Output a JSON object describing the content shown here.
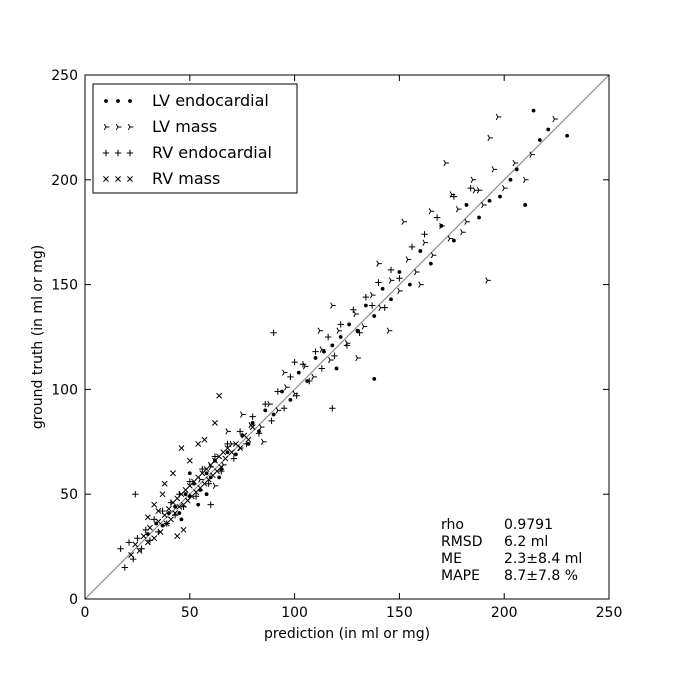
{
  "chart_data": {
    "type": "scatter",
    "xlabel": "prediction (in ml or mg)",
    "ylabel": "ground truth (in ml or mg)",
    "xlim": [
      0,
      250
    ],
    "ylim": [
      0,
      250
    ],
    "xticks": [
      "0",
      "50",
      "100",
      "150",
      "200",
      "250"
    ],
    "yticks": [
      "0",
      "50",
      "100",
      "150",
      "200",
      "250"
    ],
    "grid": false,
    "legend_position": "top-left",
    "identity_line": {
      "from": [
        0,
        0
      ],
      "to": [
        250,
        250
      ],
      "color": "#808080"
    },
    "series": [
      {
        "name": "LV endocardial",
        "marker": "dot",
        "color": "#000000",
        "values": [
          [
            30,
            31
          ],
          [
            34,
            36
          ],
          [
            37,
            35
          ],
          [
            40,
            41
          ],
          [
            43,
            44
          ],
          [
            45,
            41
          ],
          [
            48,
            50
          ],
          [
            50,
            49
          ],
          [
            52,
            55
          ],
          [
            55,
            52
          ],
          [
            58,
            60
          ],
          [
            60,
            58
          ],
          [
            62,
            66
          ],
          [
            65,
            62
          ],
          [
            68,
            70
          ],
          [
            72,
            69
          ],
          [
            75,
            78
          ],
          [
            78,
            74
          ],
          [
            80,
            84
          ],
          [
            83,
            80
          ],
          [
            86,
            90
          ],
          [
            90,
            88
          ],
          [
            94,
            99
          ],
          [
            98,
            95
          ],
          [
            102,
            108
          ],
          [
            106,
            104
          ],
          [
            110,
            115
          ],
          [
            114,
            118
          ],
          [
            118,
            121
          ],
          [
            122,
            125
          ],
          [
            126,
            131
          ],
          [
            130,
            128
          ],
          [
            134,
            140
          ],
          [
            138,
            135
          ],
          [
            142,
            148
          ],
          [
            146,
            143
          ],
          [
            150,
            156
          ],
          [
            155,
            150
          ],
          [
            160,
            166
          ],
          [
            165,
            160
          ],
          [
            170,
            178
          ],
          [
            176,
            171
          ],
          [
            182,
            188
          ],
          [
            188,
            182
          ],
          [
            193,
            190
          ],
          [
            198,
            192
          ],
          [
            203,
            200
          ],
          [
            206,
            205
          ],
          [
            210,
            188
          ],
          [
            217,
            219
          ],
          [
            221,
            224
          ],
          [
            230,
            221
          ],
          [
            214,
            233
          ],
          [
            138,
            105
          ],
          [
            120,
            110
          ],
          [
            46,
            38
          ],
          [
            50,
            60
          ],
          [
            58,
            50
          ],
          [
            64,
            58
          ],
          [
            54,
            45
          ]
        ]
      },
      {
        "name": "LV mass",
        "marker": "tri_right",
        "color": "#000000",
        "values": [
          [
            55,
            57
          ],
          [
            60,
            63
          ],
          [
            66,
            64
          ],
          [
            70,
            74
          ],
          [
            74,
            72
          ],
          [
            79,
            83
          ],
          [
            84,
            82
          ],
          [
            88,
            93
          ],
          [
            92,
            90
          ],
          [
            96,
            101
          ],
          [
            100,
            98
          ],
          [
            105,
            111
          ],
          [
            109,
            106
          ],
          [
            113,
            119
          ],
          [
            117,
            114
          ],
          [
            121,
            128
          ],
          [
            125,
            122
          ],
          [
            129,
            136
          ],
          [
            133,
            130
          ],
          [
            137,
            145
          ],
          [
            141,
            139
          ],
          [
            146,
            152
          ],
          [
            150,
            147
          ],
          [
            154,
            162
          ],
          [
            158,
            156
          ],
          [
            162,
            170
          ],
          [
            166,
            164
          ],
          [
            170,
            178
          ],
          [
            174,
            172
          ],
          [
            178,
            186
          ],
          [
            182,
            180
          ],
          [
            186,
            195
          ],
          [
            190,
            188
          ],
          [
            195,
            205
          ],
          [
            200,
            196
          ],
          [
            205,
            208
          ],
          [
            210,
            200
          ],
          [
            213,
            212
          ],
          [
            172,
            208
          ],
          [
            197,
            230
          ],
          [
            224,
            229
          ],
          [
            188,
            195
          ],
          [
            192,
            152
          ],
          [
            180,
            175
          ],
          [
            160,
            150
          ],
          [
            145,
            128
          ],
          [
            130,
            115
          ],
          [
            112,
            128
          ],
          [
            95,
            108
          ],
          [
            85,
            75
          ],
          [
            75,
            88
          ],
          [
            68,
            80
          ],
          [
            62,
            54
          ],
          [
            140,
            160
          ],
          [
            152,
            180
          ],
          [
            175,
            193
          ],
          [
            185,
            200
          ],
          [
            193,
            220
          ],
          [
            165,
            185
          ],
          [
            118,
            140
          ]
        ]
      },
      {
        "name": "RV endocardial",
        "marker": "plus",
        "color": "#000000",
        "values": [
          [
            17,
            24
          ],
          [
            19,
            15
          ],
          [
            21,
            27
          ],
          [
            23,
            19
          ],
          [
            24,
            50
          ],
          [
            25,
            29
          ],
          [
            27,
            24
          ],
          [
            29,
            33
          ],
          [
            31,
            28
          ],
          [
            33,
            38
          ],
          [
            35,
            32
          ],
          [
            37,
            42
          ],
          [
            39,
            36
          ],
          [
            41,
            46
          ],
          [
            43,
            40
          ],
          [
            45,
            50
          ],
          [
            47,
            44
          ],
          [
            50,
            56
          ],
          [
            53,
            49
          ],
          [
            56,
            62
          ],
          [
            59,
            55
          ],
          [
            62,
            68
          ],
          [
            65,
            61
          ],
          [
            68,
            74
          ],
          [
            71,
            67
          ],
          [
            74,
            80
          ],
          [
            77,
            74
          ],
          [
            80,
            87
          ],
          [
            83,
            79
          ],
          [
            86,
            93
          ],
          [
            89,
            85
          ],
          [
            92,
            99
          ],
          [
            95,
            91
          ],
          [
            98,
            106
          ],
          [
            101,
            97
          ],
          [
            104,
            112
          ],
          [
            107,
            104
          ],
          [
            110,
            118
          ],
          [
            113,
            110
          ],
          [
            116,
            125
          ],
          [
            119,
            116
          ],
          [
            122,
            131
          ],
          [
            125,
            121
          ],
          [
            128,
            138
          ],
          [
            131,
            127
          ],
          [
            134,
            144
          ],
          [
            137,
            140
          ],
          [
            140,
            151
          ],
          [
            143,
            139
          ],
          [
            146,
            157
          ],
          [
            150,
            153
          ],
          [
            156,
            168
          ],
          [
            162,
            174
          ],
          [
            168,
            182
          ],
          [
            176,
            192
          ],
          [
            184,
            196
          ],
          [
            90,
            127
          ],
          [
            118,
            91
          ],
          [
            60,
            45
          ],
          [
            100,
            113
          ]
        ]
      },
      {
        "name": "RV mass",
        "marker": "x",
        "color": "#000000",
        "values": [
          [
            22,
            21
          ],
          [
            24,
            26
          ],
          [
            26,
            23
          ],
          [
            28,
            30
          ],
          [
            30,
            27
          ],
          [
            31,
            34
          ],
          [
            33,
            29
          ],
          [
            35,
            37
          ],
          [
            36,
            32
          ],
          [
            38,
            40
          ],
          [
            39,
            36
          ],
          [
            40,
            43
          ],
          [
            41,
            38
          ],
          [
            42,
            46
          ],
          [
            43,
            41
          ],
          [
            44,
            48
          ],
          [
            45,
            44
          ],
          [
            46,
            50
          ],
          [
            47,
            45
          ],
          [
            48,
            52
          ],
          [
            49,
            47
          ],
          [
            50,
            54
          ],
          [
            51,
            49
          ],
          [
            52,
            56
          ],
          [
            53,
            51
          ],
          [
            54,
            58
          ],
          [
            55,
            53
          ],
          [
            56,
            60
          ],
          [
            57,
            55
          ],
          [
            58,
            62
          ],
          [
            59,
            57
          ],
          [
            60,
            64
          ],
          [
            61,
            59
          ],
          [
            62,
            66
          ],
          [
            63,
            61
          ],
          [
            64,
            68
          ],
          [
            65,
            63
          ],
          [
            66,
            70
          ],
          [
            67,
            67
          ],
          [
            68,
            72
          ],
          [
            70,
            70
          ],
          [
            72,
            74
          ],
          [
            74,
            72
          ],
          [
            76,
            78
          ],
          [
            78,
            76
          ],
          [
            80,
            82
          ],
          [
            62,
            84
          ],
          [
            64,
            97
          ],
          [
            54,
            74
          ],
          [
            46,
            72
          ],
          [
            35,
            42
          ],
          [
            33,
            45
          ],
          [
            30,
            39
          ],
          [
            38,
            55
          ],
          [
            37,
            50
          ],
          [
            42,
            60
          ],
          [
            50,
            66
          ],
          [
            57,
            76
          ],
          [
            44,
            30
          ],
          [
            47,
            33
          ]
        ]
      }
    ],
    "annotations": [
      {
        "key": "rho",
        "value": "0.9791"
      },
      {
        "key": "RMSD",
        "value": "6.2 ml"
      },
      {
        "key": "ME",
        "value": "2.3±8.4 ml"
      },
      {
        "key": "MAPE",
        "value": "8.7±7.8 %"
      }
    ]
  }
}
